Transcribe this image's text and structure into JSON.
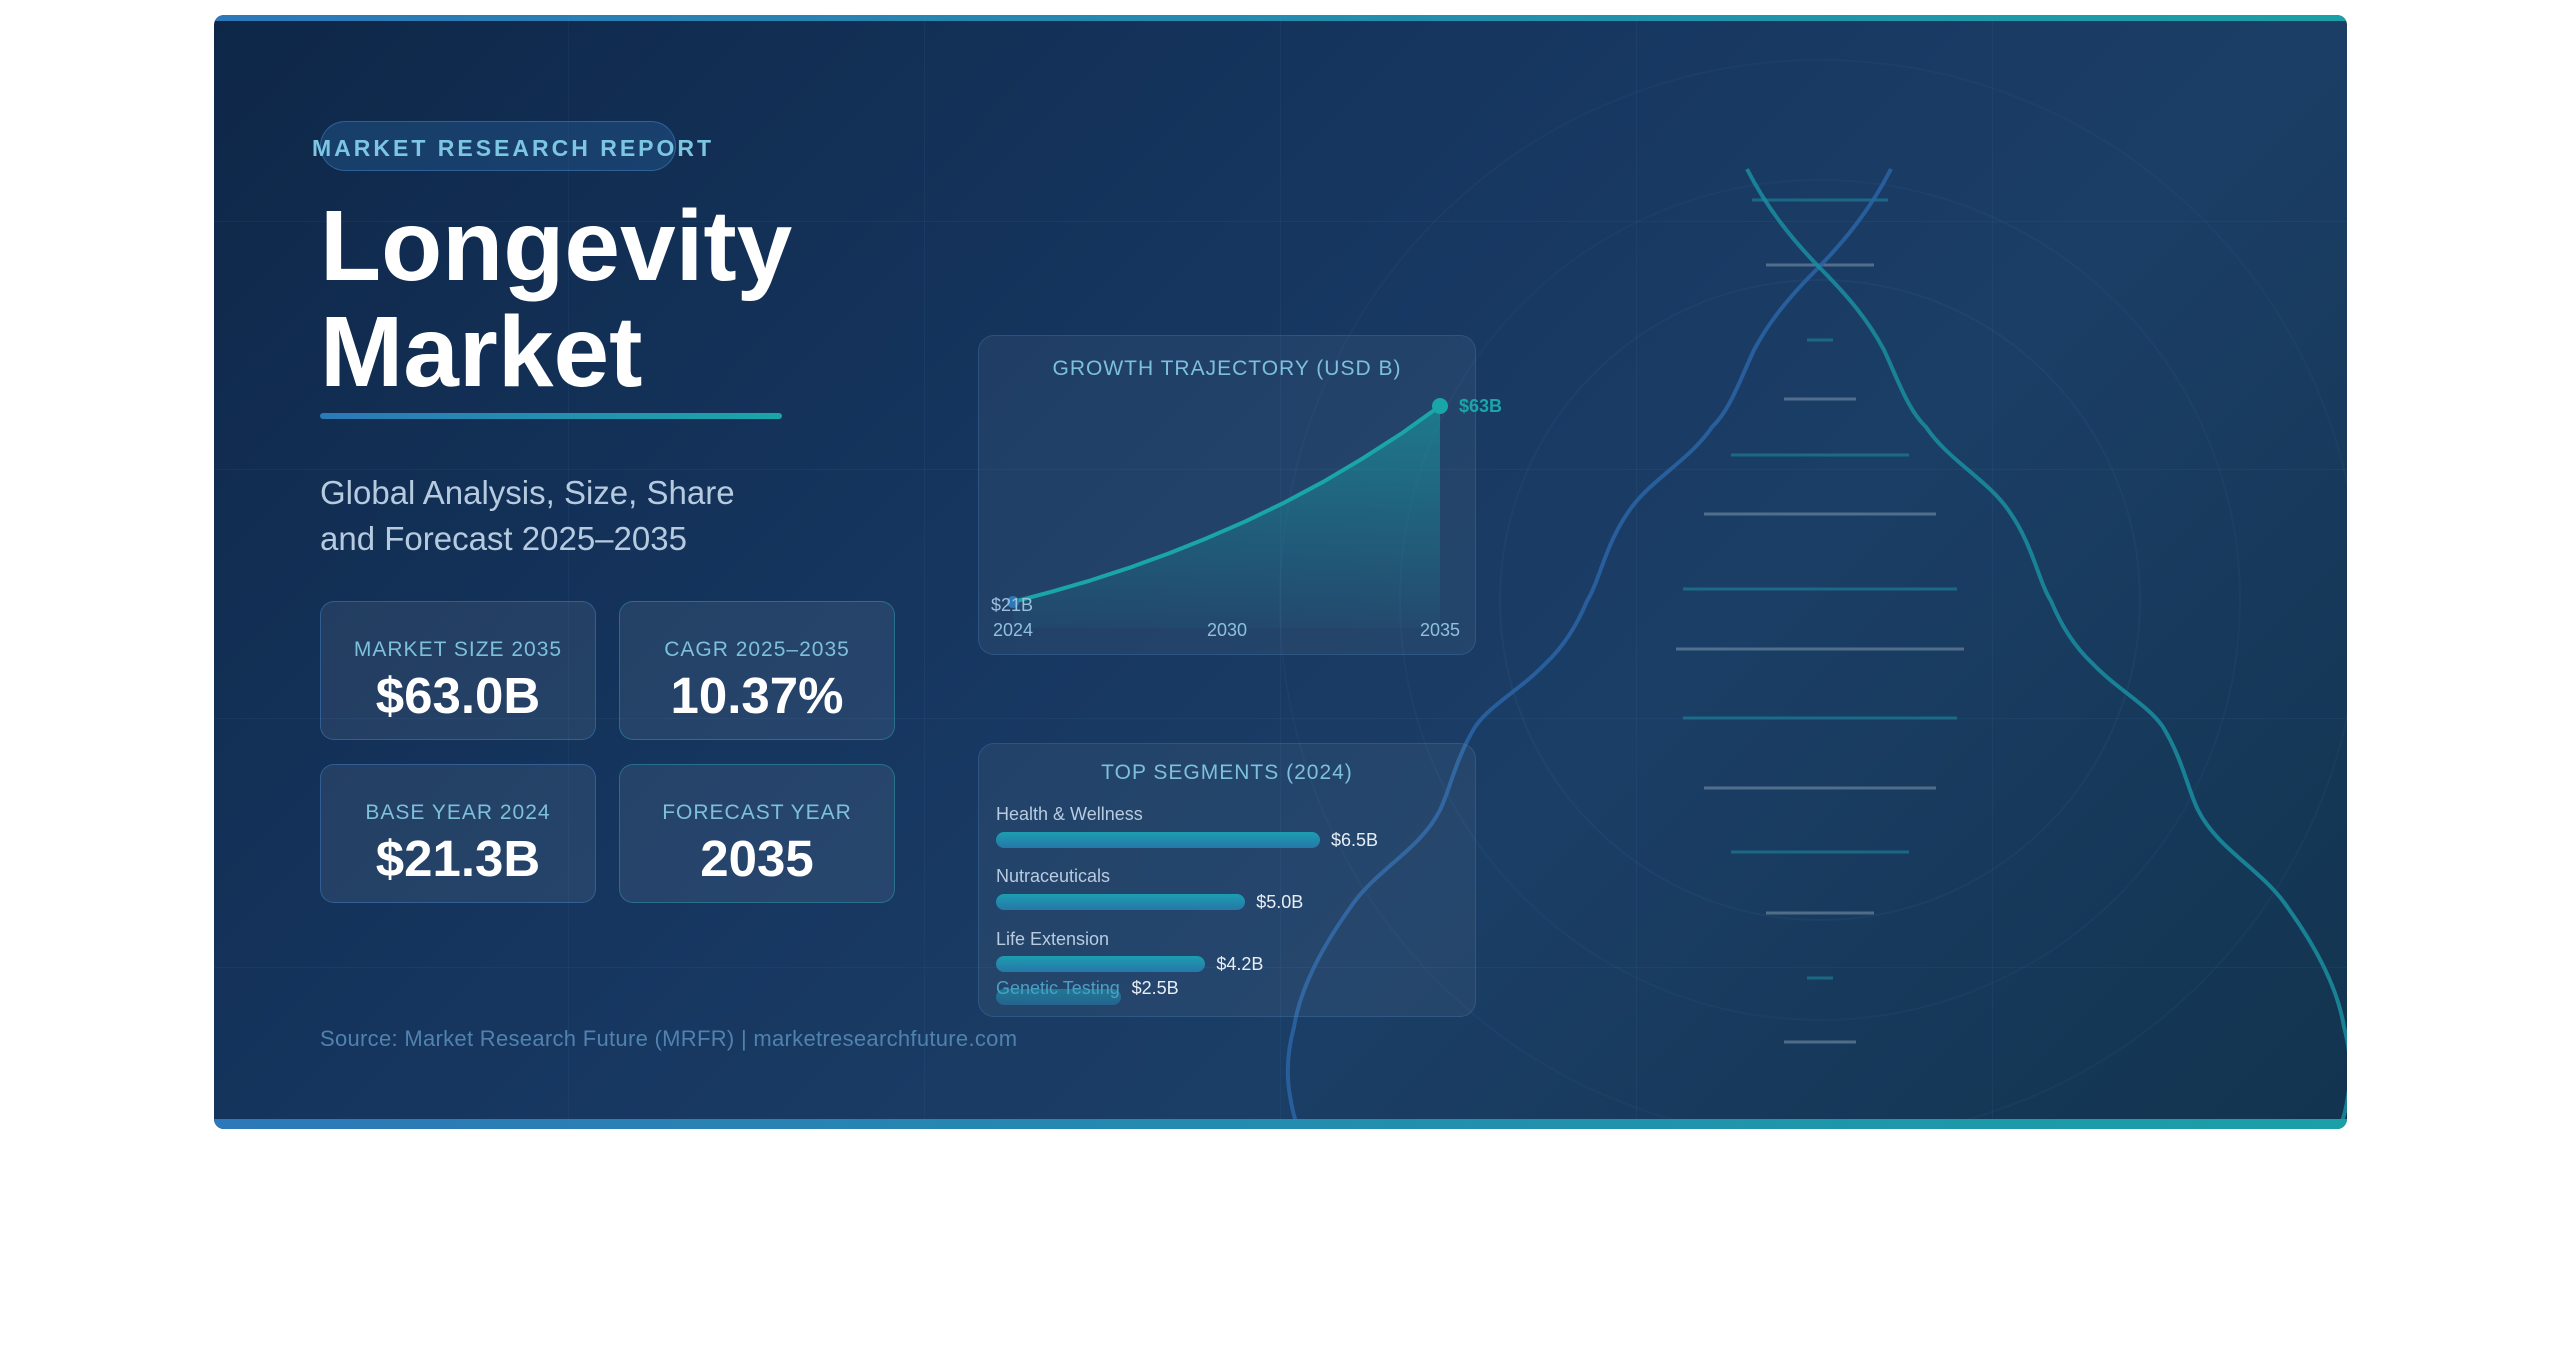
{
  "badge": "MARKET RESEARCH REPORT",
  "title_line1": "Longevity",
  "title_line2": "Market",
  "subtitle_line1": "Global Analysis, Size, Share",
  "subtitle_line2": "and Forecast 2025–2035",
  "stats": [
    {
      "label": "MARKET SIZE 2035",
      "value": "$63.0B"
    },
    {
      "label": "CAGR 2025–2035",
      "value": "10.37%"
    },
    {
      "label": "BASE YEAR 2024",
      "value": "$21.3B"
    },
    {
      "label": "FORECAST YEAR",
      "value": "2035"
    }
  ],
  "source": "Source: Market Research Future (MRFR) | marketresearchfuture.com",
  "colors": {
    "accent_teal": "#1aa6a8",
    "accent_blue": "#2d78b8",
    "background": "#163660"
  },
  "chart_data": [
    {
      "type": "area",
      "title": "GROWTH TRAJECTORY (USD B)",
      "x": [
        2024,
        2025,
        2026,
        2027,
        2028,
        2029,
        2030,
        2031,
        2032,
        2033,
        2034,
        2035
      ],
      "values": [
        21.3,
        23.5,
        25.9,
        28.6,
        31.6,
        34.9,
        38.5,
        42.5,
        46.9,
        51.8,
        57.1,
        63.0
      ],
      "x_tick_labels": [
        "2024",
        "2030",
        "2035"
      ],
      "start_label": "$21B",
      "end_label": "$63B",
      "grid": false
    },
    {
      "type": "bar",
      "title": "TOP SEGMENTS (2024)",
      "categories": [
        "Health & Wellness",
        "Nutraceuticals",
        "Life Extension",
        "Genetic Testing"
      ],
      "values": [
        6.5,
        5.0,
        4.2,
        2.5
      ],
      "value_labels": [
        "$6.5B",
        "$5.0B",
        "$4.2B",
        "$2.5B"
      ],
      "orientation": "horizontal"
    }
  ]
}
